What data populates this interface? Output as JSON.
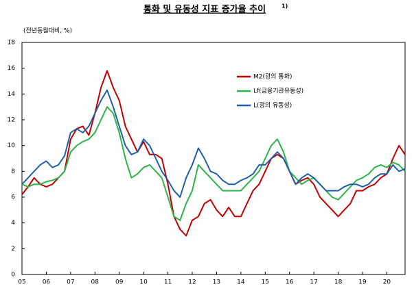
{
  "chart_data": {
    "type": "line",
    "title": "통화 및 유동성 지표 증가율 추이",
    "title_note": "1)",
    "y_label": "(전년동월대비, %)",
    "x": [
      5,
      5.25,
      5.5,
      5.75,
      6,
      6.25,
      6.5,
      6.75,
      7,
      7.25,
      7.5,
      7.75,
      8,
      8.25,
      8.5,
      8.75,
      9,
      9.25,
      9.5,
      9.75,
      10,
      10.25,
      10.5,
      10.75,
      11,
      11.25,
      11.5,
      11.75,
      12,
      12.25,
      12.5,
      12.75,
      13,
      13.25,
      13.5,
      13.75,
      14,
      14.25,
      14.5,
      14.75,
      15,
      15.25,
      15.5,
      15.75,
      16,
      16.25,
      16.5,
      16.75,
      17,
      17.25,
      17.5,
      17.75,
      18,
      18.25,
      18.5,
      18.75,
      19,
      19.25,
      19.5,
      19.75,
      20,
      20.25,
      20.5,
      20.75
    ],
    "series": [
      {
        "name": "M2(광의 통화)",
        "color": "#c00000",
        "values": [
          6.2,
          6.8,
          7.5,
          7.0,
          6.8,
          7.0,
          7.5,
          8.0,
          10.5,
          11.3,
          11.5,
          10.8,
          12.5,
          14.5,
          15.8,
          14.5,
          13.5,
          11.5,
          10.5,
          9.5,
          10.3,
          9.3,
          9.3,
          9.0,
          7.0,
          4.5,
          3.5,
          3.0,
          4.2,
          4.5,
          5.5,
          5.8,
          5.0,
          4.5,
          5.2,
          4.5,
          4.5,
          5.5,
          6.5,
          7.0,
          8.0,
          9.0,
          9.3,
          9.0,
          8.0,
          7.0,
          7.3,
          7.5,
          7.0,
          6.0,
          5.5,
          5.0,
          4.5,
          5.0,
          5.5,
          6.5,
          6.5,
          6.8,
          7.0,
          7.5,
          7.8,
          9.0,
          10.0,
          9.3
        ]
      },
      {
        "name": "Lf(금융기관유동성)",
        "color": "#2db34a",
        "values": [
          7.0,
          6.8,
          7.0,
          7.0,
          7.2,
          7.3,
          7.5,
          8.0,
          9.5,
          10.0,
          10.3,
          10.5,
          11.0,
          12.0,
          13.0,
          12.5,
          11.0,
          9.0,
          7.5,
          7.8,
          8.3,
          8.5,
          8.0,
          7.5,
          6.0,
          4.5,
          4.2,
          5.5,
          6.5,
          8.5,
          8.0,
          7.5,
          7.0,
          6.5,
          6.5,
          6.5,
          6.5,
          7.0,
          7.5,
          8.0,
          9.0,
          10.0,
          10.5,
          9.5,
          8.0,
          7.5,
          7.0,
          7.3,
          7.5,
          7.0,
          6.5,
          6.0,
          5.8,
          6.3,
          6.8,
          7.3,
          7.5,
          7.8,
          8.3,
          8.5,
          8.3,
          8.7,
          8.5,
          8.0
        ]
      },
      {
        "name": "L(광의 유동성)",
        "color": "#1f5fa8",
        "values": [
          7.0,
          7.5,
          8.0,
          8.5,
          8.8,
          8.3,
          8.5,
          9.2,
          11.0,
          11.3,
          11.0,
          11.5,
          12.5,
          13.5,
          14.3,
          13.0,
          11.5,
          10.0,
          9.3,
          9.5,
          10.5,
          10.0,
          9.0,
          8.0,
          7.3,
          6.5,
          6.0,
          7.5,
          8.5,
          9.8,
          9.0,
          8.0,
          7.8,
          7.3,
          7.0,
          7.0,
          7.3,
          7.5,
          7.8,
          8.5,
          8.5,
          9.0,
          9.5,
          9.0,
          8.0,
          7.0,
          7.5,
          7.8,
          7.5,
          7.0,
          6.5,
          6.5,
          6.5,
          6.8,
          7.0,
          7.0,
          6.8,
          7.0,
          7.5,
          7.8,
          7.8,
          8.5,
          8.0,
          8.2
        ]
      }
    ],
    "xlim": [
      5,
      20.75
    ],
    "xticks": [
      {
        "value": 5,
        "label": "05"
      },
      {
        "value": 6,
        "label": "06"
      },
      {
        "value": 7,
        "label": "07"
      },
      {
        "value": 8,
        "label": "08"
      },
      {
        "value": 9,
        "label": "09"
      },
      10,
      11,
      12,
      13,
      14,
      15,
      16,
      17,
      18,
      19,
      20
    ],
    "ylim": [
      0,
      18
    ],
    "yticks": [
      0,
      2,
      4,
      6,
      8,
      10,
      12,
      14,
      16,
      18
    ],
    "grid": false
  }
}
